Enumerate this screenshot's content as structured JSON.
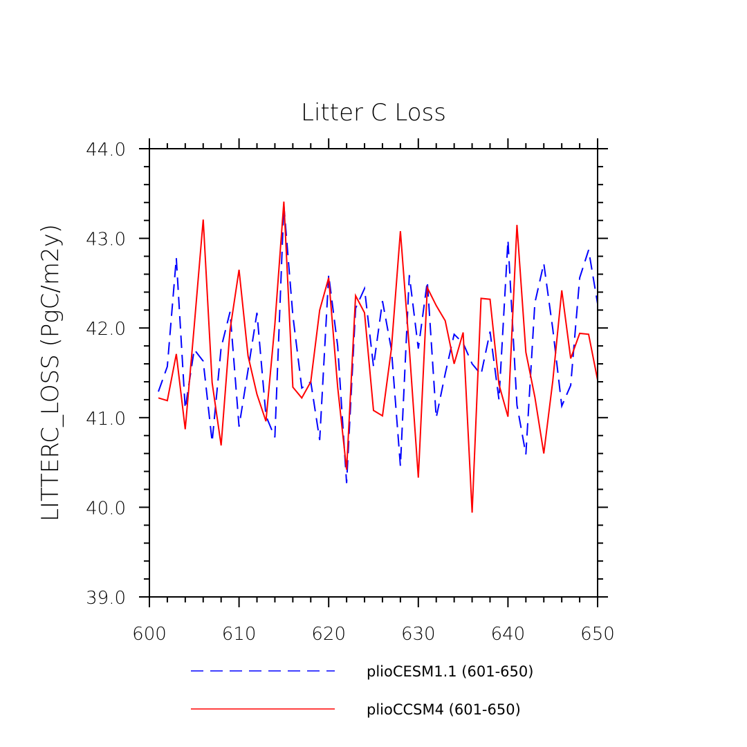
{
  "chart_data": {
    "type": "line",
    "title": "Litter C Loss",
    "xlabel": "",
    "ylabel": "LITTERC_LOSS  (PgC/m2y)",
    "xlim": [
      600,
      650
    ],
    "ylim": [
      39.0,
      44.0
    ],
    "xticks": [
      "600",
      "610",
      "620",
      "630",
      "640",
      "650"
    ],
    "yticks": [
      "39.0",
      "40.0",
      "41.0",
      "42.0",
      "43.0",
      "44.0"
    ],
    "grid": false,
    "legend_position": "bottom",
    "x": [
      601,
      602,
      603,
      604,
      605,
      606,
      607,
      608,
      609,
      610,
      611,
      612,
      613,
      614,
      615,
      616,
      617,
      618,
      619,
      620,
      621,
      622,
      623,
      624,
      625,
      626,
      627,
      628,
      629,
      630,
      631,
      632,
      633,
      634,
      635,
      636,
      637,
      638,
      639,
      640,
      641,
      642,
      643,
      644,
      645,
      646,
      647,
      648,
      649,
      650
    ],
    "series": [
      {
        "name": "plioCESM1.1 (601-650)",
        "color": "#0000ff",
        "style": "dashed",
        "values": [
          41.29,
          41.57,
          42.78,
          41.1,
          41.76,
          41.63,
          40.73,
          41.78,
          42.18,
          40.9,
          41.53,
          42.17,
          41.02,
          40.78,
          43.37,
          42.14,
          41.33,
          41.4,
          40.75,
          42.59,
          41.8,
          40.27,
          42.22,
          42.44,
          41.57,
          42.3,
          41.76,
          40.46,
          42.59,
          41.77,
          42.52,
          41.0,
          41.49,
          41.93,
          41.83,
          41.6,
          41.48,
          41.96,
          41.2,
          42.98,
          41.14,
          40.59,
          42.28,
          42.72,
          41.99,
          41.13,
          41.36,
          42.56,
          42.87,
          42.27
        ]
      },
      {
        "name": "plioCCSM4 (601-650)",
        "color": "#ff0000",
        "style": "solid",
        "values": [
          41.22,
          41.19,
          41.71,
          40.87,
          42.02,
          43.21,
          41.39,
          40.69,
          41.98,
          42.65,
          41.69,
          41.26,
          40.96,
          42.04,
          43.41,
          41.34,
          41.22,
          41.4,
          42.2,
          42.56,
          41.34,
          40.42,
          42.36,
          42.17,
          41.08,
          41.02,
          41.77,
          43.08,
          41.77,
          40.33,
          42.45,
          42.25,
          42.08,
          41.6,
          41.95,
          39.94,
          42.33,
          42.32,
          41.37,
          41.01,
          43.15,
          41.73,
          41.23,
          40.6,
          41.41,
          42.42,
          41.66,
          41.94,
          41.93,
          41.42
        ]
      }
    ]
  }
}
